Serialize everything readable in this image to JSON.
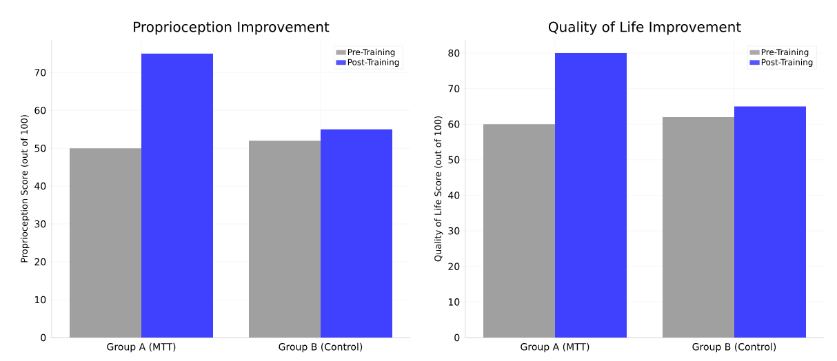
{
  "chart_data": [
    {
      "type": "bar",
      "title": "Proprioception Improvement",
      "ylabel": "Proprioception Score (out of 100)",
      "categories": [
        "Group A (MTT)",
        "Group B (Control)"
      ],
      "series": [
        {
          "name": "Pre-Training",
          "color": "#a0a0a0",
          "values": [
            50,
            52
          ]
        },
        {
          "name": "Post-Training",
          "color": "#4040ff",
          "values": [
            75,
            55
          ]
        }
      ],
      "ylim": [
        0,
        78.6
      ],
      "yticks": [
        0,
        10,
        20,
        30,
        40,
        50,
        60,
        70
      ],
      "grid": true,
      "legend": "top right"
    },
    {
      "type": "bar",
      "title": "Quality of Life Improvement",
      "ylabel": "Quality of Life Score (out of 100)",
      "categories": [
        "Group A (MTT)",
        "Group B (Control)"
      ],
      "series": [
        {
          "name": "Pre-Training",
          "color": "#a0a0a0",
          "values": [
            60,
            62
          ]
        },
        {
          "name": "Post-Training",
          "color": "#4040ff",
          "values": [
            80,
            65
          ]
        }
      ],
      "ylim": [
        0,
        83.7
      ],
      "yticks": [
        0,
        10,
        20,
        30,
        40,
        50,
        60,
        70,
        80
      ],
      "grid": true,
      "legend": "top right"
    }
  ]
}
